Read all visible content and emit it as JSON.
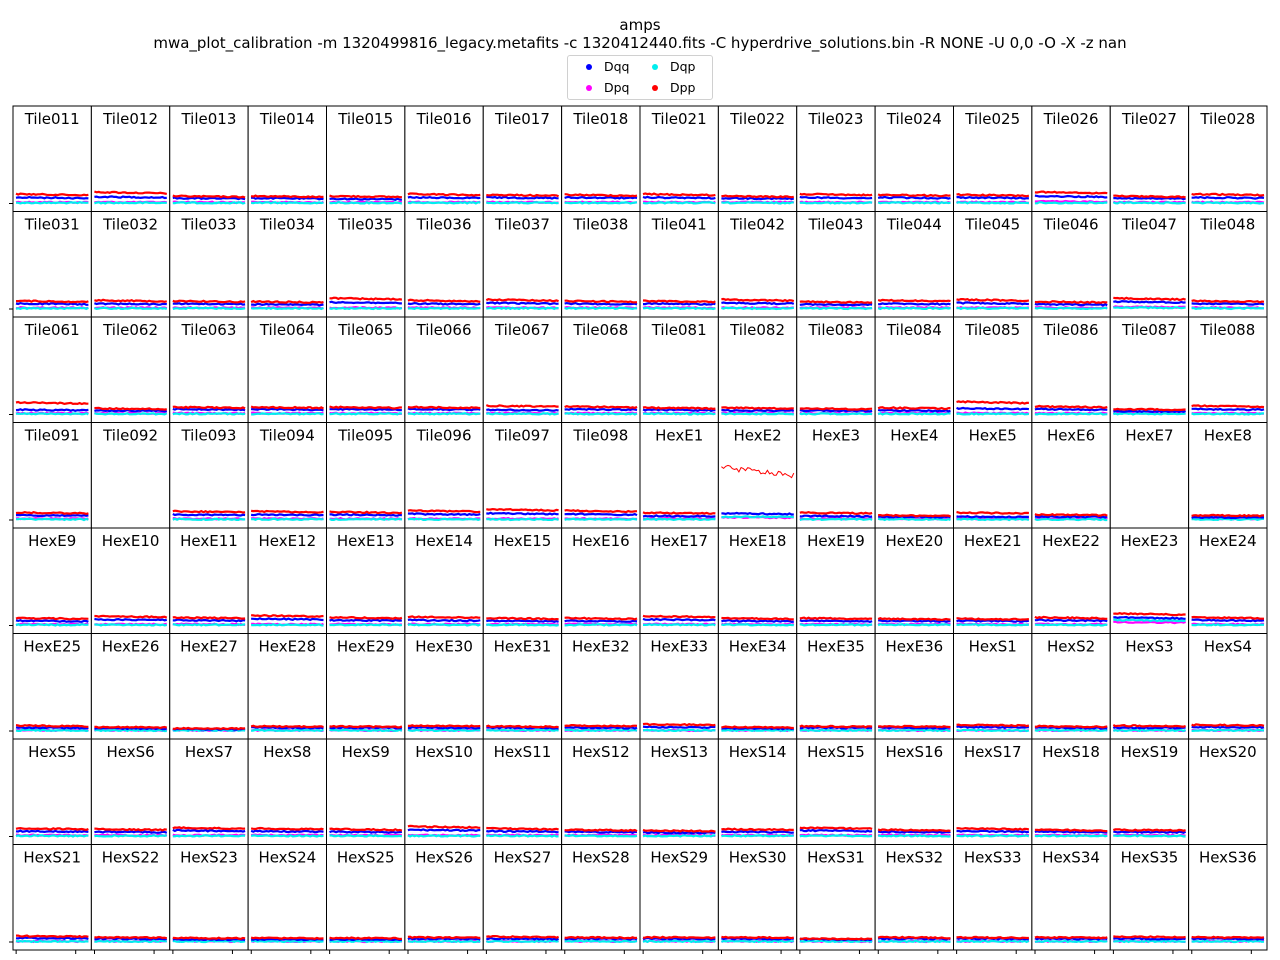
{
  "title": "amps",
  "subtitle": "mwa_plot_calibration -m 1320499816_legacy.metafits -c 1320412440.fits -C hyperdrive_solutions.bin -R NONE -U 0,0 -O -X -z nan",
  "legend": [
    {
      "name": "Dqq",
      "color": "#0000ff"
    },
    {
      "name": "Dqp",
      "color": "#00eeee"
    },
    {
      "name": "Dpq",
      "color": "#ff00ff"
    },
    {
      "name": "Dpp",
      "color": "#ff0000"
    }
  ],
  "chart_data": {
    "type": "scatter",
    "title": "amps",
    "subtitle": "mwa_plot_calibration -m 1320499816_legacy.metafits -c 1320412440.fits -C hyperdrive_solutions.bin -R NONE -U 0,0 -O -X -z nan",
    "layout": "small multiples, 8 rows x 16 columns",
    "series": [
      "Dqq",
      "Dqp",
      "Dpq",
      "Dpp"
    ],
    "series_colors": {
      "Dqq": "#0000ff",
      "Dqp": "#00eeee",
      "Dpq": "#ff00ff",
      "Dpp": "#ff0000"
    },
    "ylim": [
      0,
      1
    ],
    "tiles": [
      "Tile011",
      "Tile012",
      "Tile013",
      "Tile014",
      "Tile015",
      "Tile016",
      "Tile017",
      "Tile018",
      "Tile021",
      "Tile022",
      "Tile023",
      "Tile024",
      "Tile025",
      "Tile026",
      "Tile027",
      "Tile028",
      "Tile031",
      "Tile032",
      "Tile033",
      "Tile034",
      "Tile035",
      "Tile036",
      "Tile037",
      "Tile038",
      "Tile041",
      "Tile042",
      "Tile043",
      "Tile044",
      "Tile045",
      "Tile046",
      "Tile047",
      "Tile048",
      "Tile061",
      "Tile062",
      "Tile063",
      "Tile064",
      "Tile065",
      "Tile066",
      "Tile067",
      "Tile068",
      "Tile081",
      "Tile082",
      "Tile083",
      "Tile084",
      "Tile085",
      "Tile086",
      "Tile087",
      "Tile088",
      "Tile091",
      "Tile092",
      "Tile093",
      "Tile094",
      "Tile095",
      "Tile096",
      "Tile097",
      "Tile098",
      "HexE1",
      "HexE2",
      "HexE3",
      "HexE4",
      "HexE5",
      "HexE6",
      "HexE7",
      "HexE8",
      "HexE9",
      "HexE10",
      "HexE11",
      "HexE12",
      "HexE13",
      "HexE14",
      "HexE15",
      "HexE16",
      "HexE17",
      "HexE18",
      "HexE19",
      "HexE20",
      "HexE21",
      "HexE22",
      "HexE23",
      "HexE24",
      "HexE25",
      "HexE26",
      "HexE27",
      "HexE28",
      "HexE29",
      "HexE30",
      "HexE31",
      "HexE32",
      "HexE33",
      "HexE34",
      "HexE35",
      "HexE36",
      "HexS1",
      "HexS2",
      "HexS3",
      "HexS4",
      "HexS5",
      "HexS6",
      "HexS7",
      "HexS8",
      "HexS9",
      "HexS10",
      "HexS11",
      "HexS12",
      "HexS13",
      "HexS14",
      "HexS15",
      "HexS16",
      "HexS17",
      "HexS18",
      "HexS19",
      "HexS20",
      "HexS21",
      "HexS22",
      "HexS23",
      "HexS24",
      "HexS25",
      "HexS26",
      "HexS27",
      "HexS28",
      "HexS29",
      "HexS30",
      "HexS31",
      "HexS32",
      "HexS33",
      "HexS34",
      "HexS35",
      "HexS36"
    ],
    "levels": {
      "Dpp": [
        0.14,
        0.17,
        0.11,
        0.11,
        0.11,
        0.14,
        0.13,
        0.13,
        0.14,
        0.11,
        0.14,
        0.13,
        0.13,
        0.17,
        0.11,
        0.14,
        0.12,
        0.13,
        0.12,
        0.11,
        0.16,
        0.13,
        0.14,
        0.12,
        0.12,
        0.14,
        0.11,
        0.13,
        0.14,
        0.11,
        0.16,
        0.12,
        0.18,
        0.09,
        0.11,
        0.11,
        0.11,
        0.11,
        0.13,
        0.12,
        0.1,
        0.1,
        0.09,
        0.1,
        0.19,
        0.12,
        0.08,
        0.13,
        0.11,
        null,
        0.13,
        0.13,
        0.12,
        0.14,
        0.16,
        0.14,
        0.11,
        0.78,
        0.11,
        0.07,
        0.11,
        0.08,
        null,
        0.07,
        0.11,
        0.14,
        0.12,
        0.15,
        0.12,
        0.13,
        0.11,
        0.11,
        0.14,
        0.11,
        0.11,
        0.1,
        0.1,
        0.12,
        0.18,
        0.12,
        0.08,
        0.06,
        0.04,
        0.07,
        0.07,
        0.08,
        0.07,
        0.08,
        0.1,
        0.06,
        0.07,
        0.07,
        0.09,
        0.07,
        0.08,
        0.09,
        0.12,
        0.11,
        0.13,
        0.12,
        0.11,
        0.15,
        0.12,
        0.1,
        0.09,
        0.11,
        0.13,
        0.1,
        0.12,
        0.1,
        0.1,
        null,
        0.09,
        0.07,
        0.06,
        0.06,
        0.06,
        0.07,
        0.08,
        0.07,
        0.07,
        0.07,
        0.05,
        0.07,
        0.07,
        0.07,
        0.08,
        0.07
      ],
      "Dqq": [
        0.09,
        0.1,
        0.08,
        0.08,
        0.07,
        0.09,
        0.09,
        0.09,
        0.09,
        0.08,
        0.09,
        0.09,
        0.09,
        0.11,
        0.08,
        0.09,
        0.08,
        0.08,
        0.08,
        0.07,
        0.1,
        0.08,
        0.09,
        0.08,
        0.08,
        0.09,
        0.07,
        0.08,
        0.09,
        0.07,
        0.11,
        0.08,
        0.07,
        0.06,
        0.08,
        0.08,
        0.08,
        0.08,
        0.07,
        0.08,
        0.07,
        0.06,
        0.06,
        0.06,
        0.09,
        0.08,
        0.05,
        0.08,
        0.07,
        null,
        0.08,
        0.08,
        0.08,
        0.09,
        0.1,
        0.09,
        0.06,
        0.1,
        0.06,
        0.05,
        0.05,
        0.05,
        null,
        0.04,
        0.07,
        0.09,
        0.08,
        0.1,
        0.08,
        0.08,
        0.07,
        0.07,
        0.09,
        0.07,
        0.07,
        0.07,
        0.07,
        0.08,
        0.12,
        0.08,
        0.05,
        0.04,
        0.03,
        0.05,
        0.05,
        0.05,
        0.05,
        0.05,
        0.06,
        0.04,
        0.05,
        0.05,
        0.06,
        0.05,
        0.05,
        0.06,
        0.08,
        0.07,
        0.09,
        0.08,
        0.07,
        0.1,
        0.08,
        0.07,
        0.06,
        0.07,
        0.09,
        0.07,
        0.08,
        0.07,
        0.07,
        null,
        0.06,
        0.05,
        0.04,
        0.04,
        0.04,
        0.05,
        0.05,
        0.05,
        0.05,
        0.05,
        0.04,
        0.05,
        0.05,
        0.05,
        0.05,
        0.05
      ],
      "Dpq": [
        0.02,
        0.02,
        0.02,
        0.02,
        0.02,
        0.02,
        0.02,
        0.02,
        0.02,
        0.02,
        0.02,
        0.02,
        0.02,
        0.03,
        0.02,
        0.02,
        0.02,
        0.02,
        0.02,
        0.02,
        0.02,
        0.02,
        0.02,
        0.02,
        0.02,
        0.02,
        0.02,
        0.02,
        0.02,
        0.02,
        0.03,
        0.02,
        0.02,
        0.02,
        0.02,
        0.02,
        0.02,
        0.02,
        0.02,
        0.02,
        0.02,
        0.02,
        0.02,
        0.02,
        0.02,
        0.02,
        0.02,
        0.02,
        0.02,
        null,
        0.02,
        0.02,
        0.02,
        0.02,
        0.02,
        0.02,
        0.02,
        0.04,
        0.02,
        0.02,
        0.02,
        0.02,
        null,
        0.02,
        0.02,
        0.02,
        0.02,
        0.02,
        0.02,
        0.02,
        0.02,
        0.02,
        0.02,
        0.02,
        0.02,
        0.02,
        0.02,
        0.02,
        0.05,
        0.02,
        0.01,
        0.01,
        0.01,
        0.01,
        0.01,
        0.01,
        0.01,
        0.01,
        0.01,
        0.01,
        0.01,
        0.01,
        0.01,
        0.01,
        0.01,
        0.01,
        0.02,
        0.02,
        0.02,
        0.02,
        0.02,
        0.02,
        0.02,
        0.02,
        0.02,
        0.02,
        0.02,
        0.02,
        0.02,
        0.02,
        0.02,
        null,
        0.01,
        0.01,
        0.01,
        0.01,
        0.01,
        0.01,
        0.01,
        0.01,
        0.01,
        0.01,
        0.01,
        0.01,
        0.01,
        0.01,
        0.01,
        0.01
      ],
      "Dqp": [
        0.01,
        0.01,
        0.01,
        0.01,
        0.01,
        0.01,
        0.01,
        0.01,
        0.01,
        0.01,
        0.01,
        0.01,
        0.01,
        0.01,
        0.01,
        0.01,
        0.01,
        0.01,
        0.01,
        0.01,
        0.01,
        0.01,
        0.01,
        0.01,
        0.01,
        0.01,
        0.01,
        0.01,
        0.01,
        0.01,
        0.02,
        0.01,
        0.01,
        0.01,
        0.01,
        0.01,
        0.01,
        0.01,
        0.01,
        0.01,
        0.01,
        0.01,
        0.01,
        0.01,
        0.01,
        0.01,
        0.01,
        0.01,
        0.01,
        null,
        0.01,
        0.01,
        0.01,
        0.01,
        0.01,
        0.01,
        0.01,
        0.05,
        0.01,
        0.01,
        0.01,
        0.01,
        null,
        0.01,
        0.01,
        0.01,
        0.01,
        0.01,
        0.01,
        0.01,
        0.01,
        0.01,
        0.01,
        0.01,
        0.01,
        0.01,
        0.01,
        0.01,
        0.08,
        0.01,
        0.01,
        0.01,
        0.01,
        0.01,
        0.01,
        0.01,
        0.01,
        0.01,
        0.01,
        0.01,
        0.01,
        0.01,
        0.01,
        0.01,
        0.01,
        0.01,
        0.01,
        0.01,
        0.01,
        0.01,
        0.01,
        0.01,
        0.01,
        0.01,
        0.01,
        0.01,
        0.01,
        0.01,
        0.01,
        0.01,
        0.01,
        null,
        0.01,
        0.01,
        0.01,
        0.01,
        0.01,
        0.01,
        0.01,
        0.01,
        0.01,
        0.01,
        0.01,
        0.01,
        0.01,
        0.01,
        0.01,
        0.01
      ]
    }
  }
}
